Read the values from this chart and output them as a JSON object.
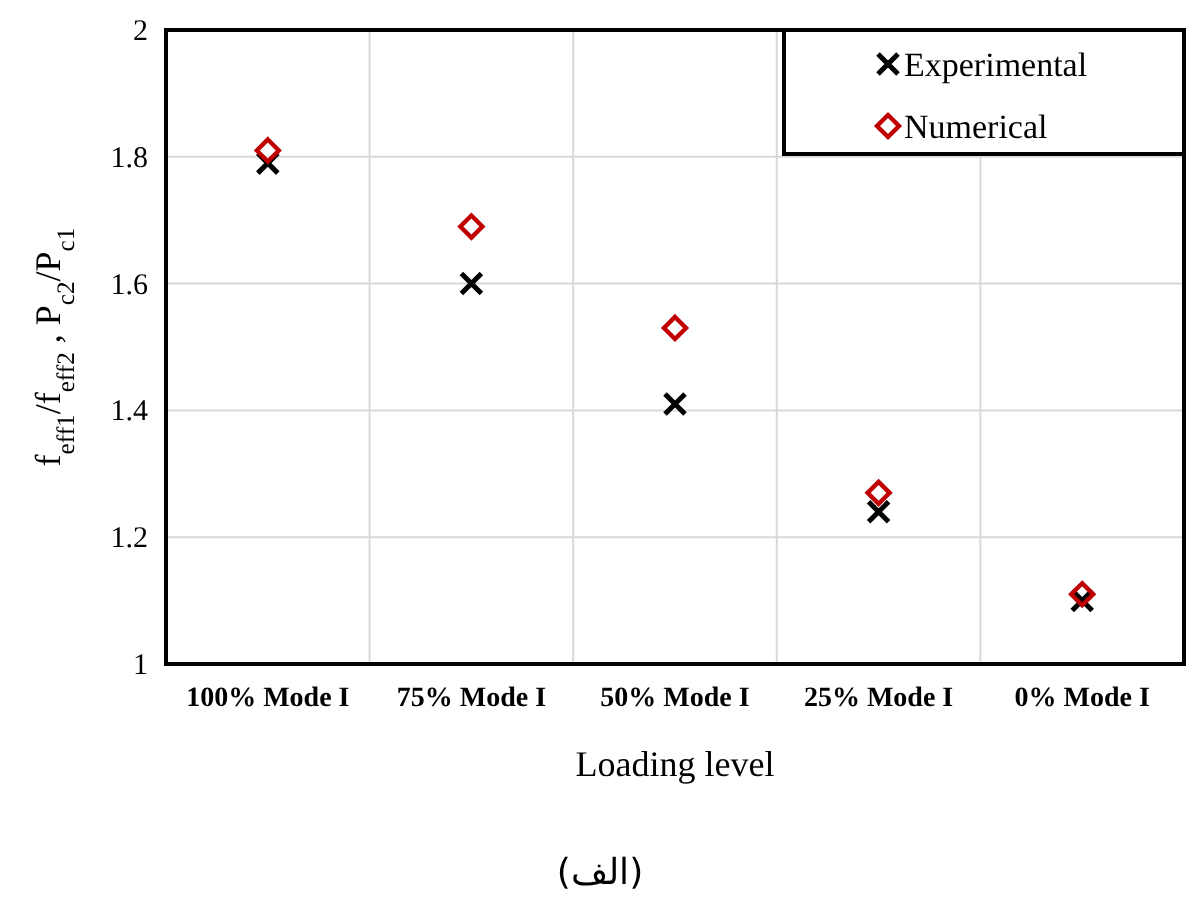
{
  "chart_data": {
    "type": "scatter",
    "categories": [
      "100% Mode I",
      "75% Mode I",
      "50% Mode I",
      "25% Mode I",
      "0% Mode I"
    ],
    "series": [
      {
        "name": "Experimental",
        "color": "#000000",
        "marker": "cross",
        "values": [
          1.79,
          1.6,
          1.41,
          1.24,
          1.1
        ]
      },
      {
        "name": "Numerical",
        "color": "#c00000",
        "marker": "diamond",
        "values": [
          1.81,
          1.69,
          1.53,
          1.27,
          1.11
        ]
      }
    ],
    "xlabel": "Loading level",
    "ylabel": "f$_{eff1}$/f$_{eff2}$ , P$_{c2}$/P$_{c1}$",
    "ylim": [
      1,
      2
    ],
    "yticks": [
      1,
      1.2,
      1.4,
      1.6,
      1.8,
      2
    ],
    "grid": true,
    "legend": "top right",
    "annotations": [
      "(الف)"
    ]
  }
}
